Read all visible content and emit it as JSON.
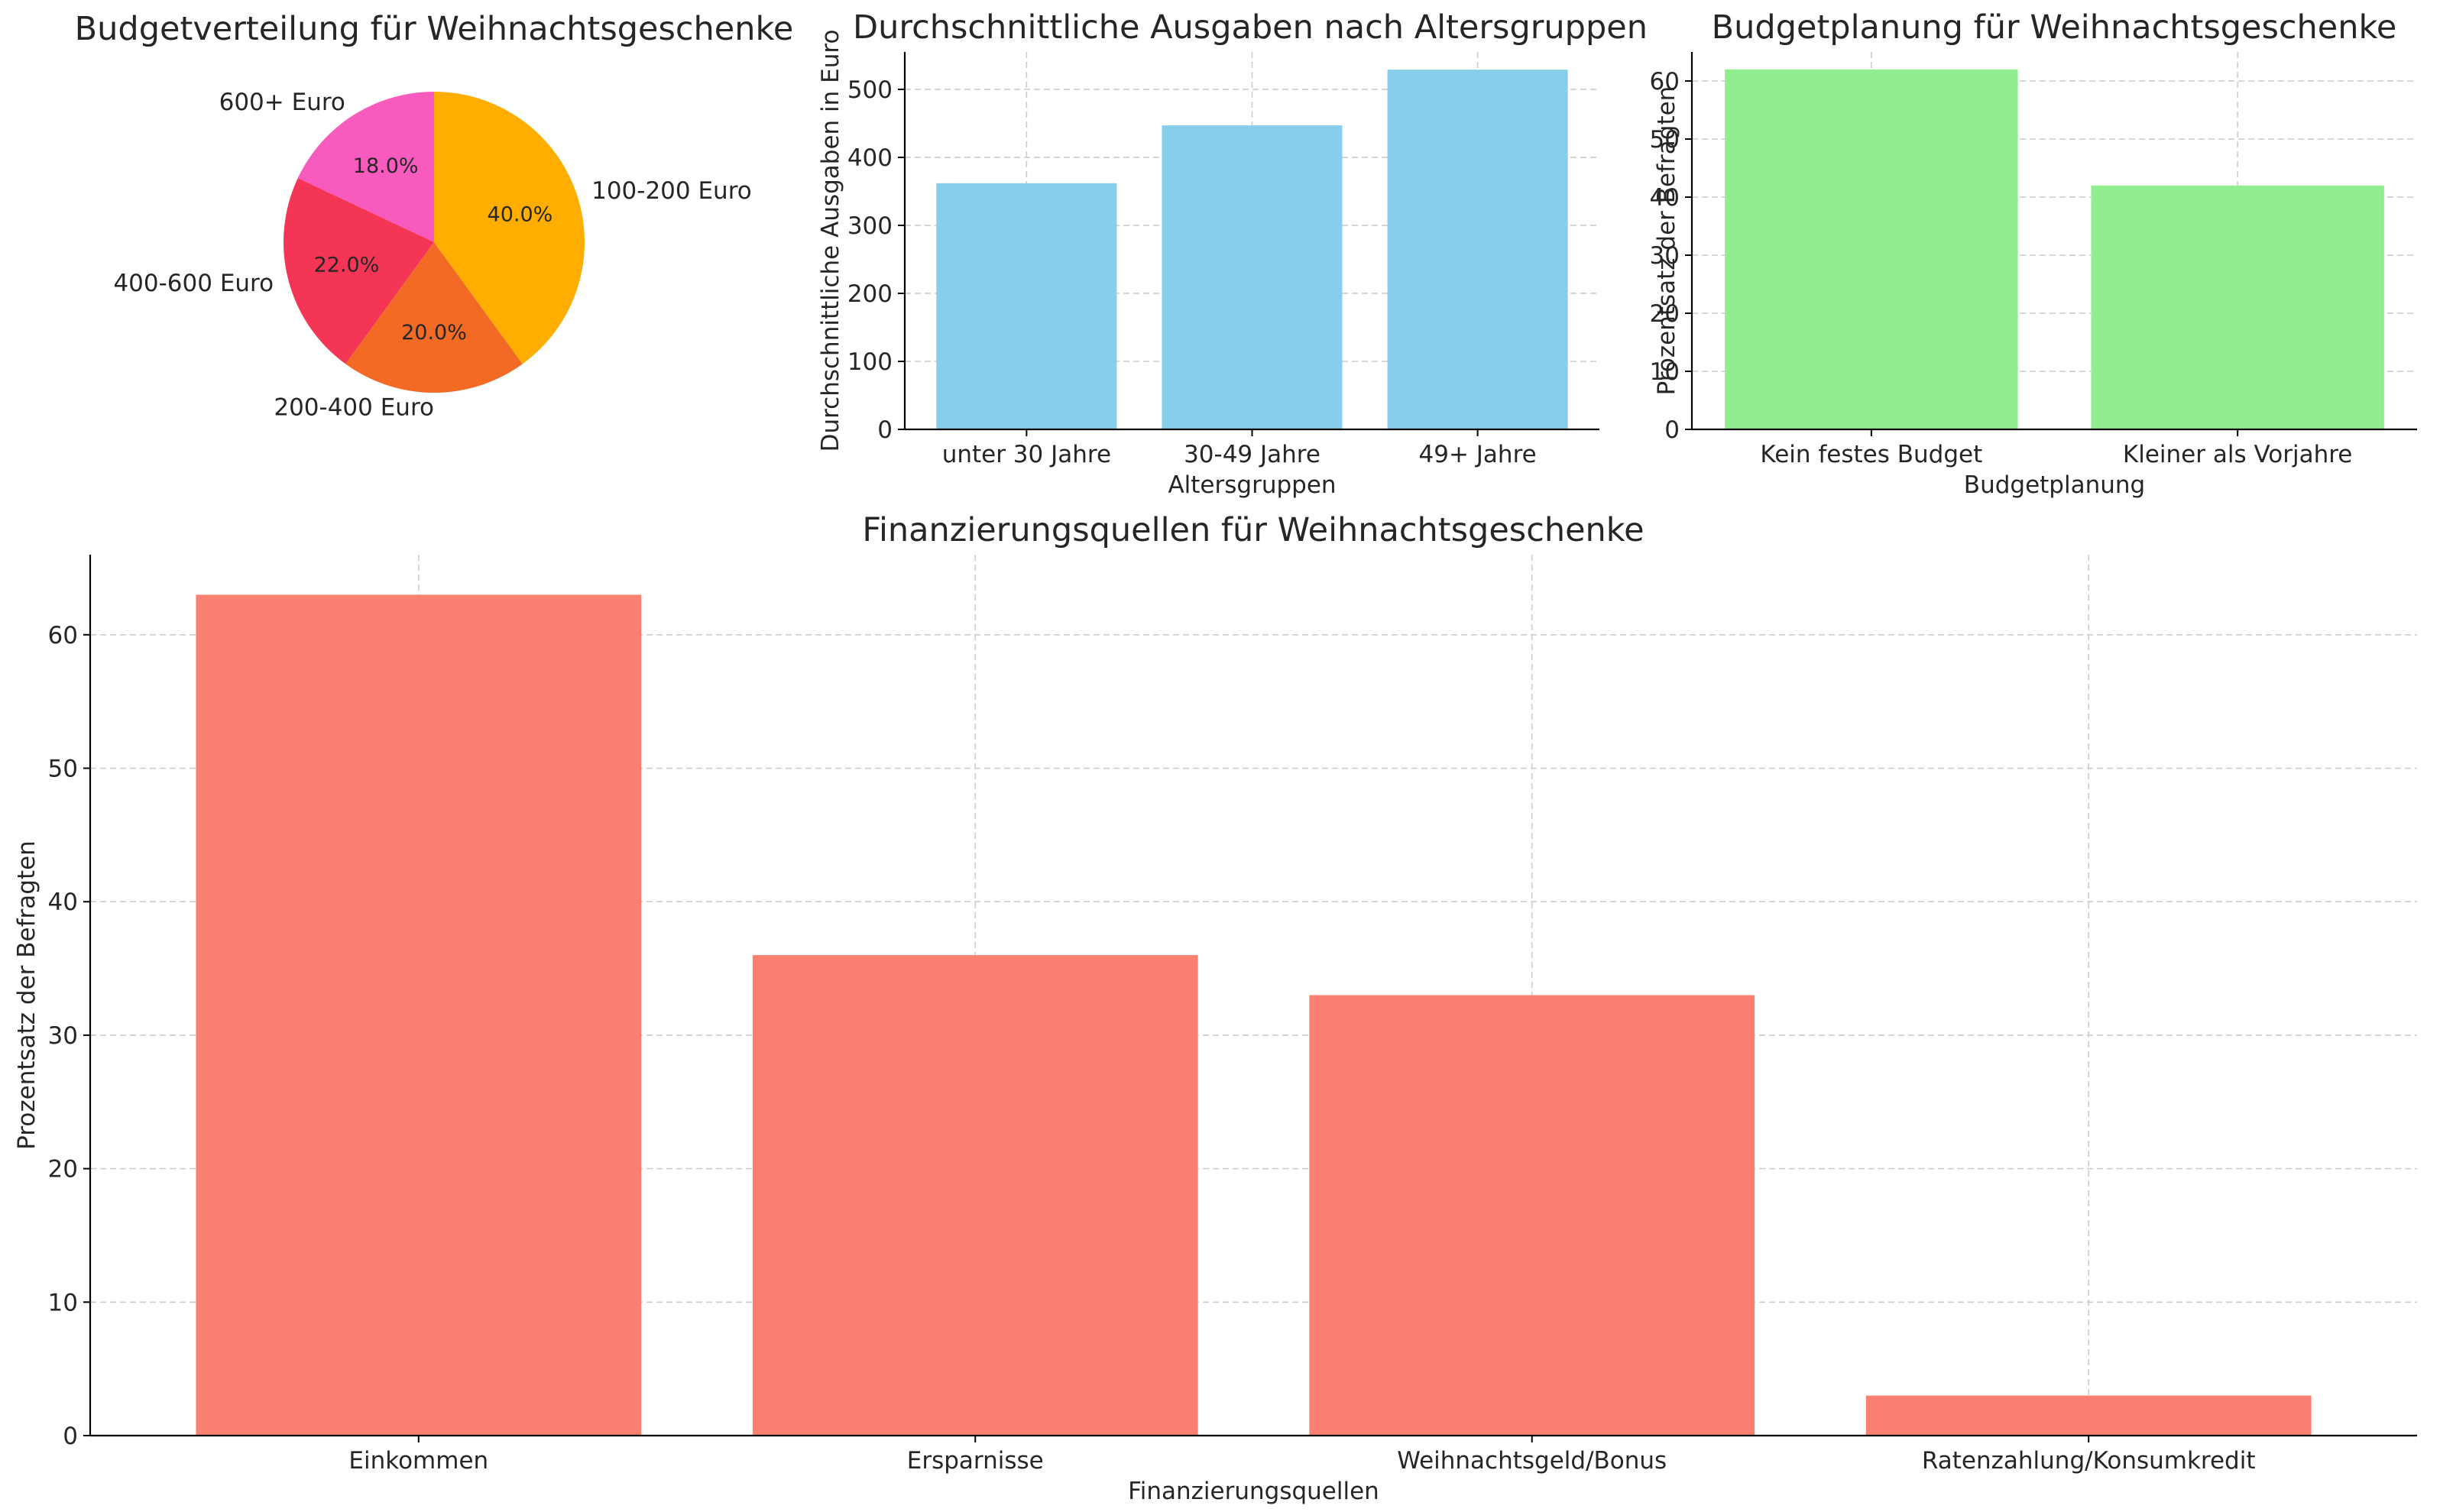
{
  "chart_data": [
    {
      "type": "pie",
      "title": "Budgetverteilung für Weihnachtsgeschenke",
      "labels": [
        "600+ Euro",
        "400-600 Euro",
        "200-400 Euro",
        "100-200 Euro"
      ],
      "values": [
        18,
        22,
        20,
        40
      ],
      "value_labels": [
        "18.0%",
        "22.0%",
        "20.0%",
        "40.0%"
      ],
      "colors": [
        "#f75bbd",
        "#f53556",
        "#f26a24",
        "#ffae00"
      ]
    },
    {
      "type": "bar",
      "title": "Durchschnittliche Ausgaben nach Altersgruppen",
      "categories": [
        "unter 30 Jahre",
        "30-49 Jahre",
        "49+ Jahre"
      ],
      "values": [
        362,
        447,
        529
      ],
      "xlabel": "Altersgruppen",
      "ylabel": "Durchschnittliche Ausgaben in Euro",
      "ylim": [
        0,
        555
      ],
      "yticks": [
        0,
        100,
        200,
        300,
        400,
        500
      ],
      "color": "#87ceeb",
      "grid": true
    },
    {
      "type": "bar",
      "title": "Budgetplanung für Weihnachtsgeschenke",
      "categories": [
        "Kein festes Budget",
        "Kleiner als Vorjahre"
      ],
      "values": [
        62,
        42
      ],
      "xlabel": "Budgetplanung",
      "ylabel": "Prozentsatz der Befragten",
      "ylim": [
        0,
        65
      ],
      "yticks": [
        0,
        10,
        20,
        30,
        40,
        50,
        60
      ],
      "color": "#90ee90",
      "grid": true
    },
    {
      "type": "bar",
      "title": "Finanzierungsquellen für Weihnachtsgeschenke",
      "categories": [
        "Einkommen",
        "Ersparnisse",
        "Weihnachtsgeld/Bonus",
        "Ratenzahlung/Konsumkredit"
      ],
      "values": [
        63,
        36,
        33,
        3
      ],
      "xlabel": "Finanzierungsquellen",
      "ylabel": "Prozentsatz der Befragten",
      "ylim": [
        0,
        66
      ],
      "yticks": [
        0,
        10,
        20,
        30,
        40,
        50,
        60
      ],
      "color": "#fa8072",
      "grid": true
    }
  ]
}
